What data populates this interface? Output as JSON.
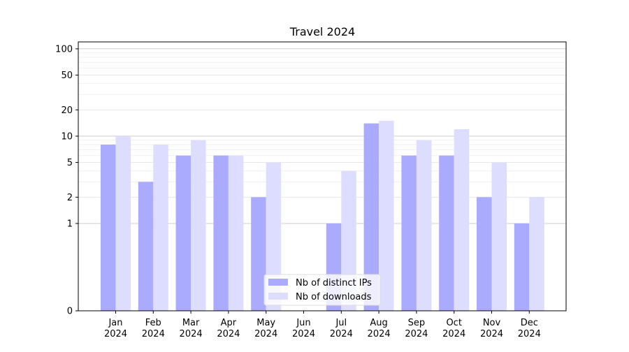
{
  "chart_data": {
    "type": "bar",
    "title": "Travel 2024",
    "xlabel": "",
    "ylabel": "",
    "yscale": "symlog",
    "ylim": [
      0,
      120
    ],
    "y_ticks": [
      0,
      1,
      2,
      5,
      10,
      20,
      50,
      100
    ],
    "y_tick_labels": [
      "0",
      "1",
      "2",
      "5",
      "10",
      "20",
      "50",
      "100"
    ],
    "grid": true,
    "legend_position": "bottom-center",
    "categories": [
      {
        "month": "Jan",
        "year": "2024"
      },
      {
        "month": "Feb",
        "year": "2024"
      },
      {
        "month": "Mar",
        "year": "2024"
      },
      {
        "month": "Apr",
        "year": "2024"
      },
      {
        "month": "May",
        "year": "2024"
      },
      {
        "month": "Jun",
        "year": "2024"
      },
      {
        "month": "Jul",
        "year": "2024"
      },
      {
        "month": "Aug",
        "year": "2024"
      },
      {
        "month": "Sep",
        "year": "2024"
      },
      {
        "month": "Oct",
        "year": "2024"
      },
      {
        "month": "Nov",
        "year": "2024"
      },
      {
        "month": "Dec",
        "year": "2024"
      }
    ],
    "series": [
      {
        "name": "Nb of distinct IPs",
        "color": "#aaaaff",
        "values": [
          8,
          3,
          6,
          6,
          2,
          0,
          1,
          14,
          6,
          6,
          2,
          1
        ]
      },
      {
        "name": "Nb of downloads",
        "color": "#ddddff",
        "values": [
          10,
          8,
          9,
          6,
          5,
          0,
          4,
          15,
          9,
          12,
          5,
          2
        ]
      }
    ]
  }
}
